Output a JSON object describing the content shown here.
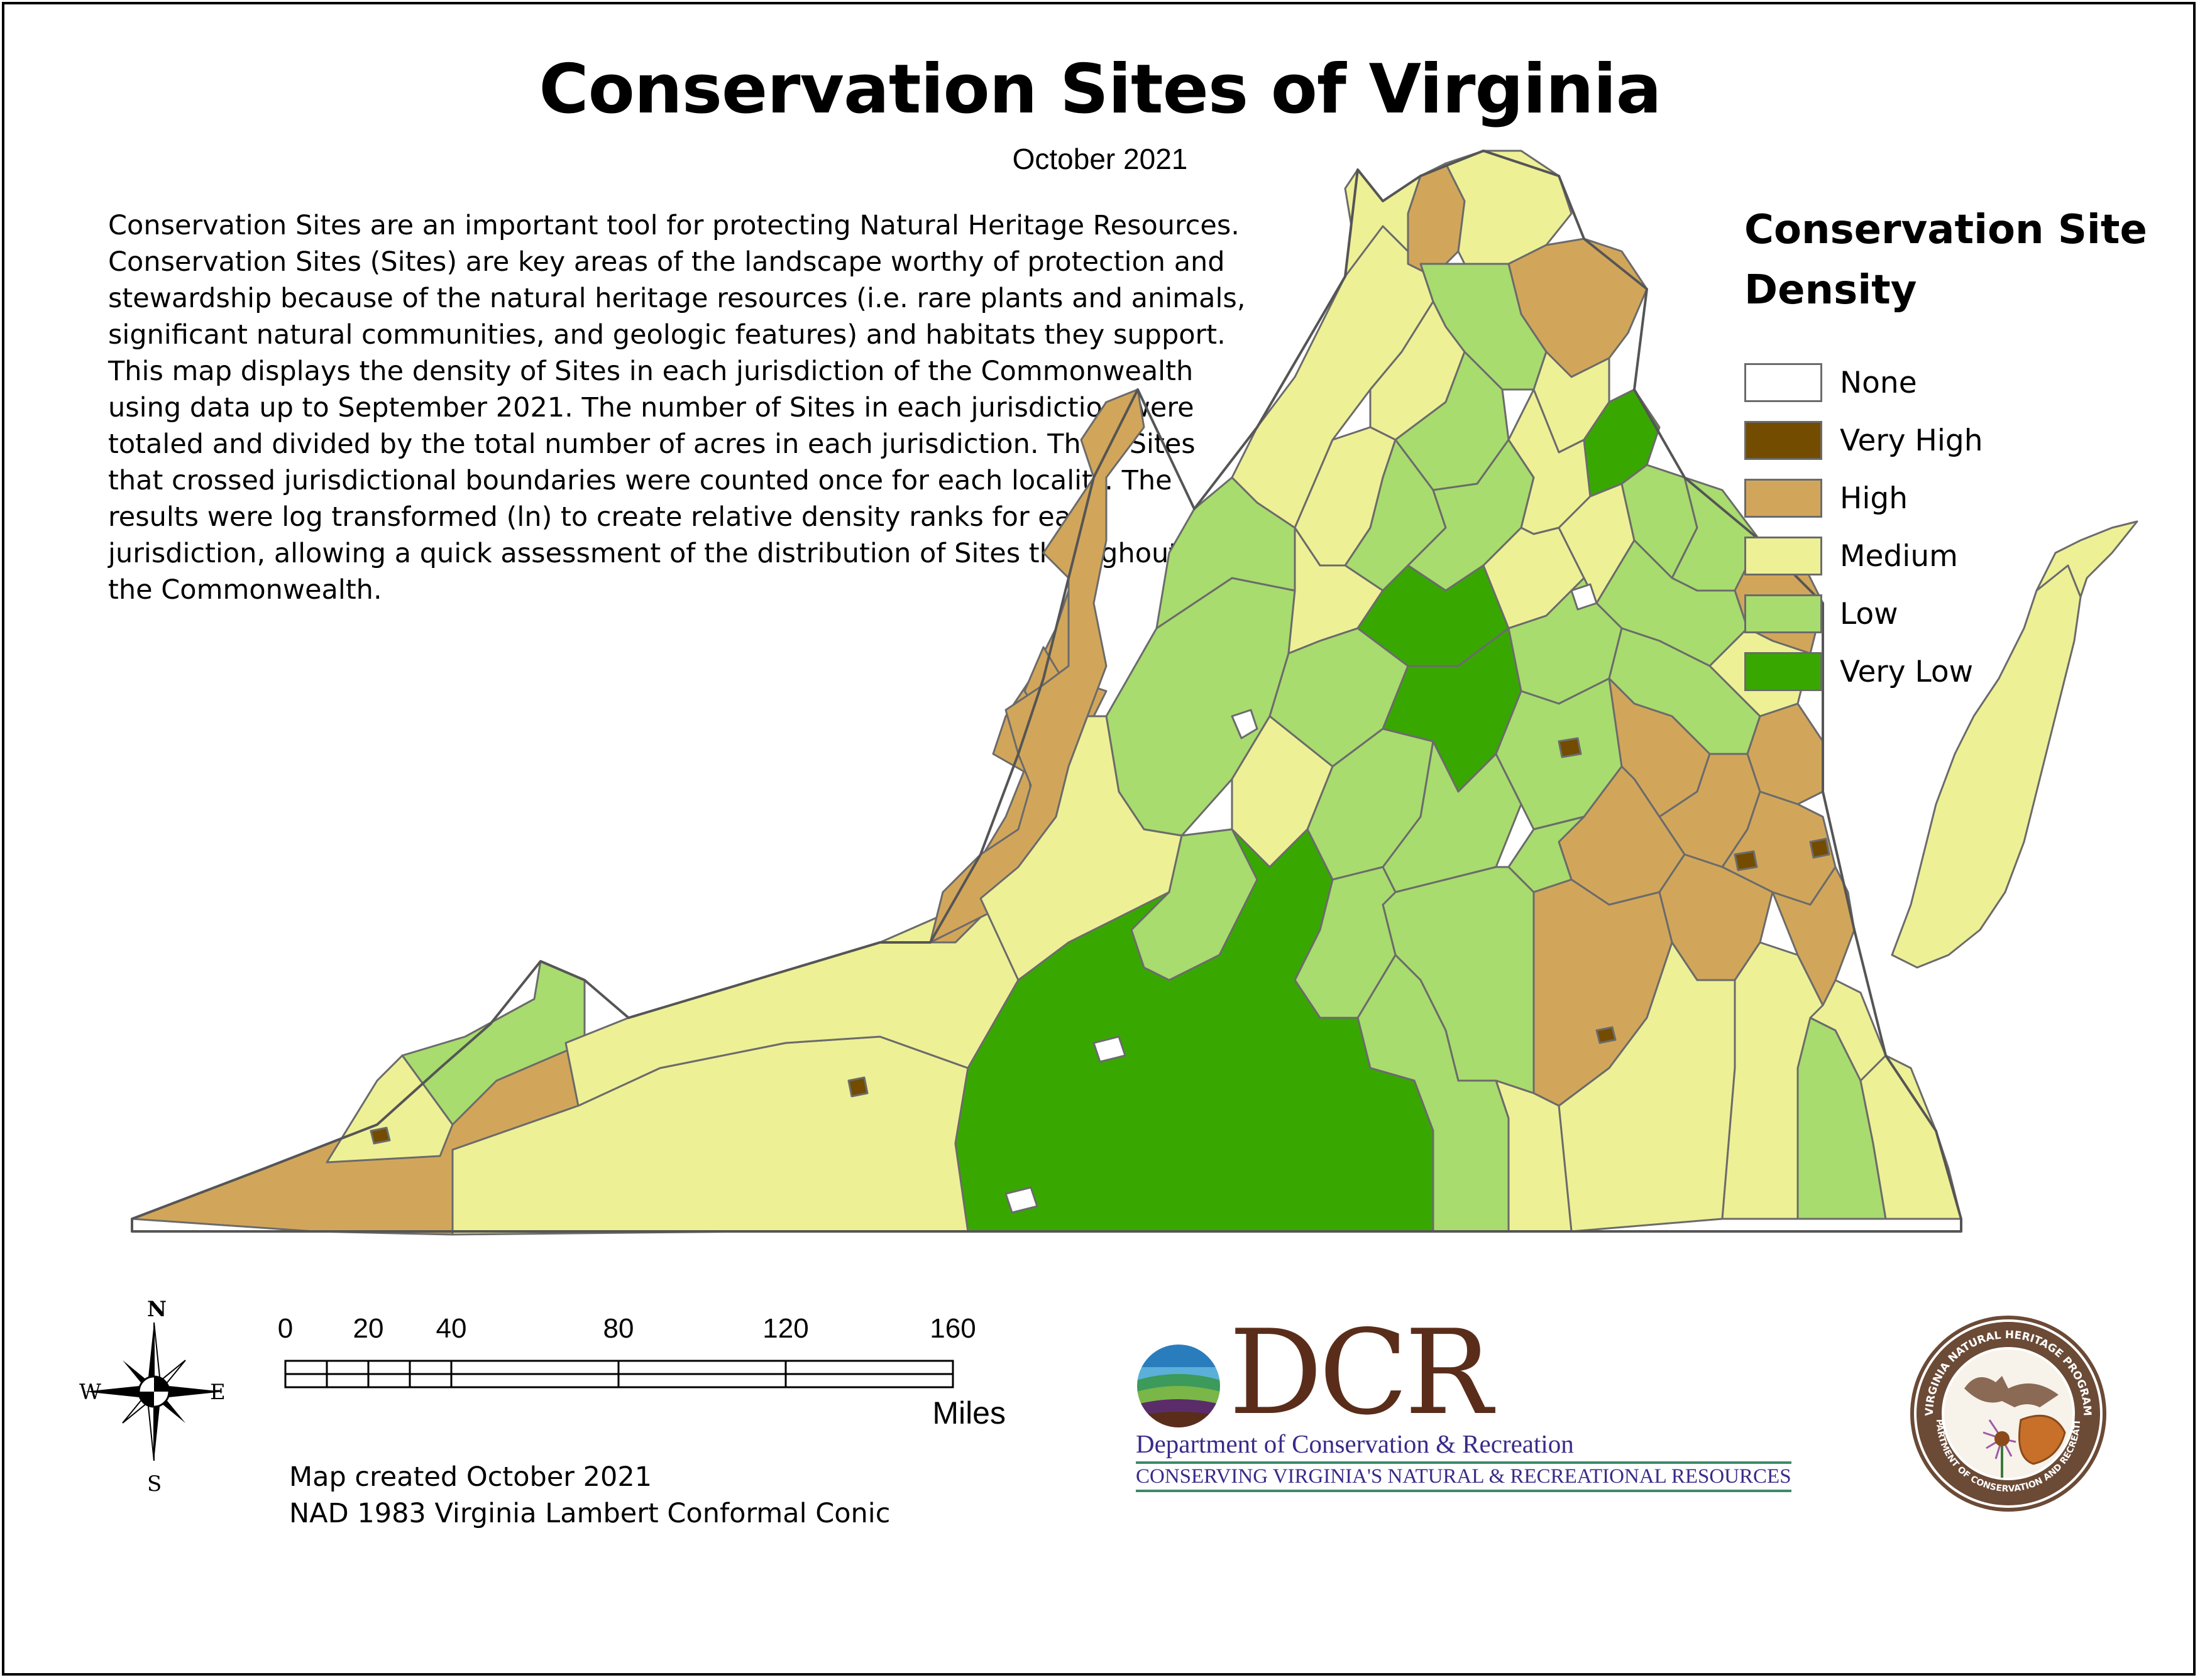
{
  "title": "Conservation Sites of Virginia",
  "subtitle": "October 2021",
  "description_lines": [
    "Conservation Sites are an important tool for protecting Natural Heritage Resources.",
    "Conservation Sites (Sites) are key areas of the landscape worthy of protection and",
    "stewardship because of the natural heritage resources (i.e. rare plants and animals,",
    "significant natural communities, and geologic features) and habitats they support.",
    "This map displays the density of Sites in each jurisdiction of the Commonwealth",
    "using data up to September 2021. The number of Sites in each jurisdiction were",
    "totaled and divided by the total number of acres in each jurisdiction. Thus, Sites",
    "that crossed jurisdictional boundaries were counted once for each locality. The",
    "results were log transformed (ln) to create relative density ranks for each",
    "jurisdiction, allowing a quick assessment of the distribution of Sites throughout",
    "the Commonwealth."
  ],
  "legend": {
    "title_line1": "Conservation Site",
    "title_line2": "Density",
    "items": [
      {
        "label": "None",
        "color": "#ffffff"
      },
      {
        "label": "Very High",
        "color": "#734c00"
      },
      {
        "label": "High",
        "color": "#d2a65a"
      },
      {
        "label": "Medium",
        "color": "#eef096"
      },
      {
        "label": "Low",
        "color": "#a8dc6e"
      },
      {
        "label": "Very Low",
        "color": "#38a800"
      }
    ]
  },
  "compass": {
    "n": "N",
    "s": "S",
    "e": "E",
    "w": "W"
  },
  "scale_bar": {
    "ticks": [
      "0",
      "20",
      "40",
      "80",
      "120",
      "160"
    ],
    "unit": "Miles"
  },
  "credits": {
    "line1": "Map created October 2021",
    "line2": "NAD 1983 Virginia Lambert Conformal Conic"
  },
  "logo": {
    "wordmark": "DCR",
    "department": "Department of Conservation & Recreation",
    "tagline": "CONSERVING VIRGINIA'S NATURAL & RECREATIONAL RESOURCES"
  },
  "seal": {
    "top_text": "VIRGINIA NATURAL HERITAGE PROGRAM",
    "bottom_text": "DEPARTMENT OF CONSERVATION AND RECREATION"
  },
  "colors": {
    "border": "#6b6b6b",
    "none": "#ffffff",
    "very_high": "#734c00",
    "high": "#d2a65a",
    "medium": "#eef096",
    "low": "#a8dc6e",
    "very_low": "#38a800"
  }
}
